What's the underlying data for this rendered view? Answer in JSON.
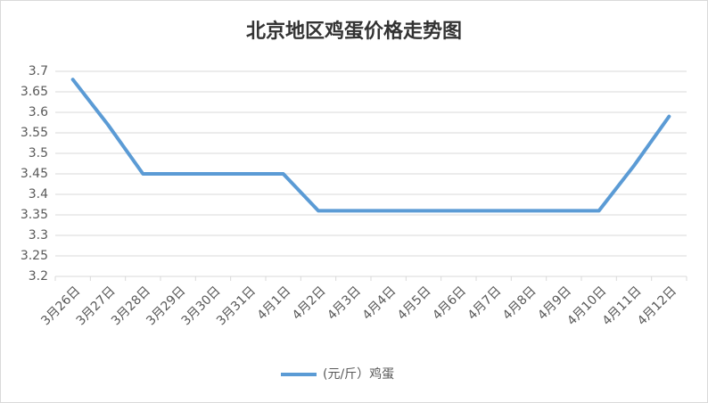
{
  "chart_data": {
    "type": "line",
    "title": "北京地区鸡蛋价格走势图",
    "categories": [
      "3月26日",
      "3月27日",
      "3月28日",
      "3月29日",
      "3月30日",
      "3月31日",
      "4月1日",
      "4月2日",
      "4月3日",
      "4月4日",
      "4月5日",
      "4月6日",
      "4月7日",
      "4月8日",
      "4月9日",
      "4月10日",
      "4月11日",
      "4月12日"
    ],
    "series": [
      {
        "name": "(元/斤）鸡蛋",
        "color": "#5b9bd5",
        "values": [
          3.68,
          3.57,
          3.45,
          3.45,
          3.45,
          3.45,
          3.45,
          3.36,
          3.36,
          3.36,
          3.36,
          3.36,
          3.36,
          3.36,
          3.36,
          3.36,
          3.47,
          3.59
        ]
      }
    ],
    "ylim": [
      3.2,
      3.7
    ],
    "yticks": [
      3.2,
      3.25,
      3.3,
      3.35,
      3.4,
      3.45,
      3.5,
      3.55,
      3.6,
      3.65,
      3.7
    ],
    "grid": true,
    "legend": "bottom"
  }
}
